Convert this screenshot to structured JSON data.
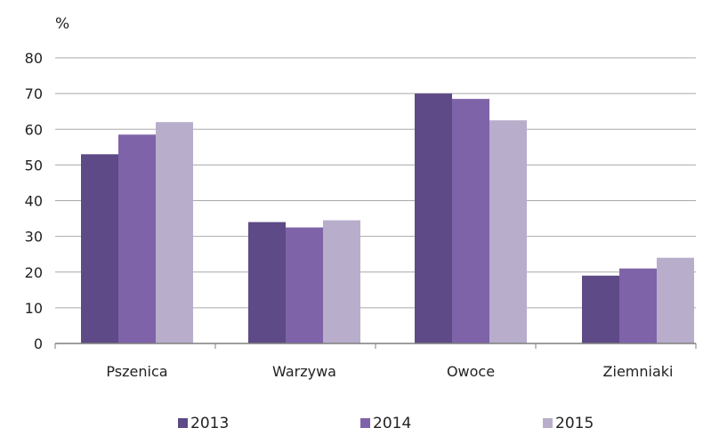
{
  "chart_data": {
    "type": "bar",
    "ylabel": "%",
    "ylim": [
      0,
      80
    ],
    "yticks": [
      0,
      10,
      20,
      30,
      40,
      50,
      60,
      70,
      80
    ],
    "grid": true,
    "legend_position": "bottom",
    "categories": [
      "Pszenica",
      "Warzywa",
      "Owoce",
      "Ziemniaki"
    ],
    "series": [
      {
        "name": "2013",
        "values": [
          53,
          34,
          70,
          19
        ],
        "color": "#5e4a86"
      },
      {
        "name": "2014",
        "values": [
          58.5,
          32.5,
          68.5,
          21
        ],
        "color": "#7e63a9"
      },
      {
        "name": "2015",
        "values": [
          62,
          34.5,
          62.5,
          24
        ],
        "color": "#b8aecb"
      }
    ]
  }
}
